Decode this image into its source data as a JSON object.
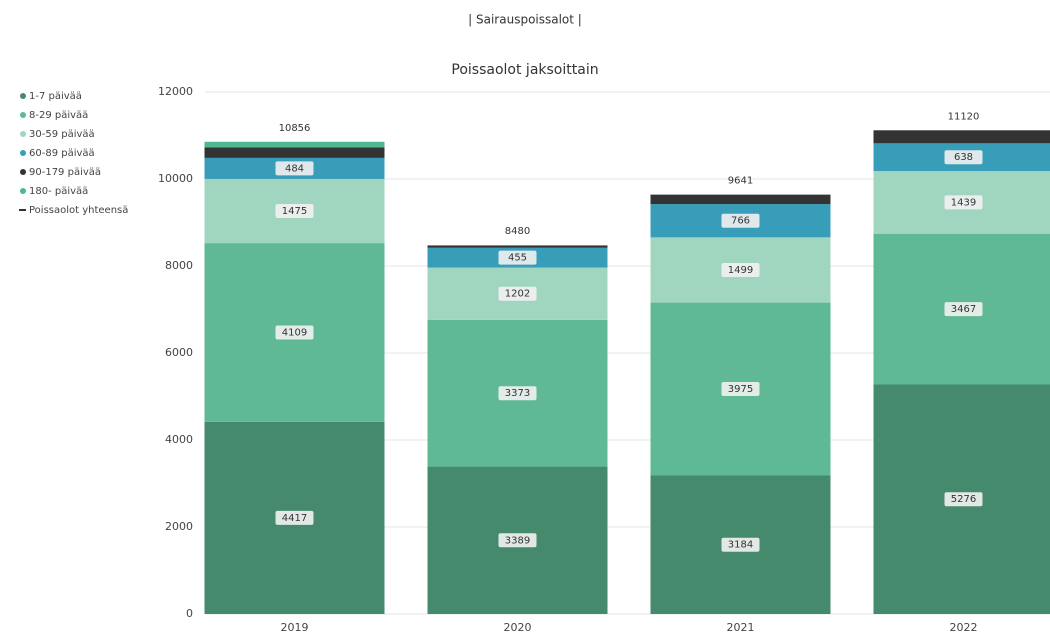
{
  "chart_data": {
    "type": "bar",
    "stacked": true,
    "subtitle": "| Sairauspoissalot |",
    "title": "Poissaolot jaksoittain",
    "categories": [
      "2019",
      "2020",
      "2021",
      "2022"
    ],
    "series": [
      {
        "name": "1-7 päivää",
        "color": "#468a6e",
        "values": [
          4417,
          3389,
          3184,
          5276
        ],
        "data_labels": true
      },
      {
        "name": "8-29 päivää",
        "color": "#5fb995",
        "values": [
          4109,
          3373,
          3975,
          3467
        ],
        "data_labels": true
      },
      {
        "name": "30-59 päivää",
        "color": "#a0d6c0",
        "values": [
          1475,
          1202,
          1499,
          1439
        ],
        "data_labels": true
      },
      {
        "name": "60-89 päivää",
        "color": "#389db8",
        "values": [
          484,
          455,
          766,
          638
        ],
        "data_labels": true
      },
      {
        "name": "90-179 päivää",
        "color": "#333333",
        "values": [
          240,
          50,
          217,
          300
        ],
        "data_labels": false
      },
      {
        "name": "180- päivää",
        "color": "#4fb88f",
        "values": [
          131,
          11,
          0,
          0
        ],
        "data_labels": false
      }
    ],
    "total": {
      "name": "Poissaolot yhteensä",
      "color": "#333333",
      "values": [
        10856,
        8480,
        9641,
        11120
      ]
    },
    "ylim": [
      0,
      12000
    ],
    "yticks": [
      0,
      2000,
      4000,
      6000,
      8000,
      10000,
      12000
    ],
    "grid": true
  }
}
